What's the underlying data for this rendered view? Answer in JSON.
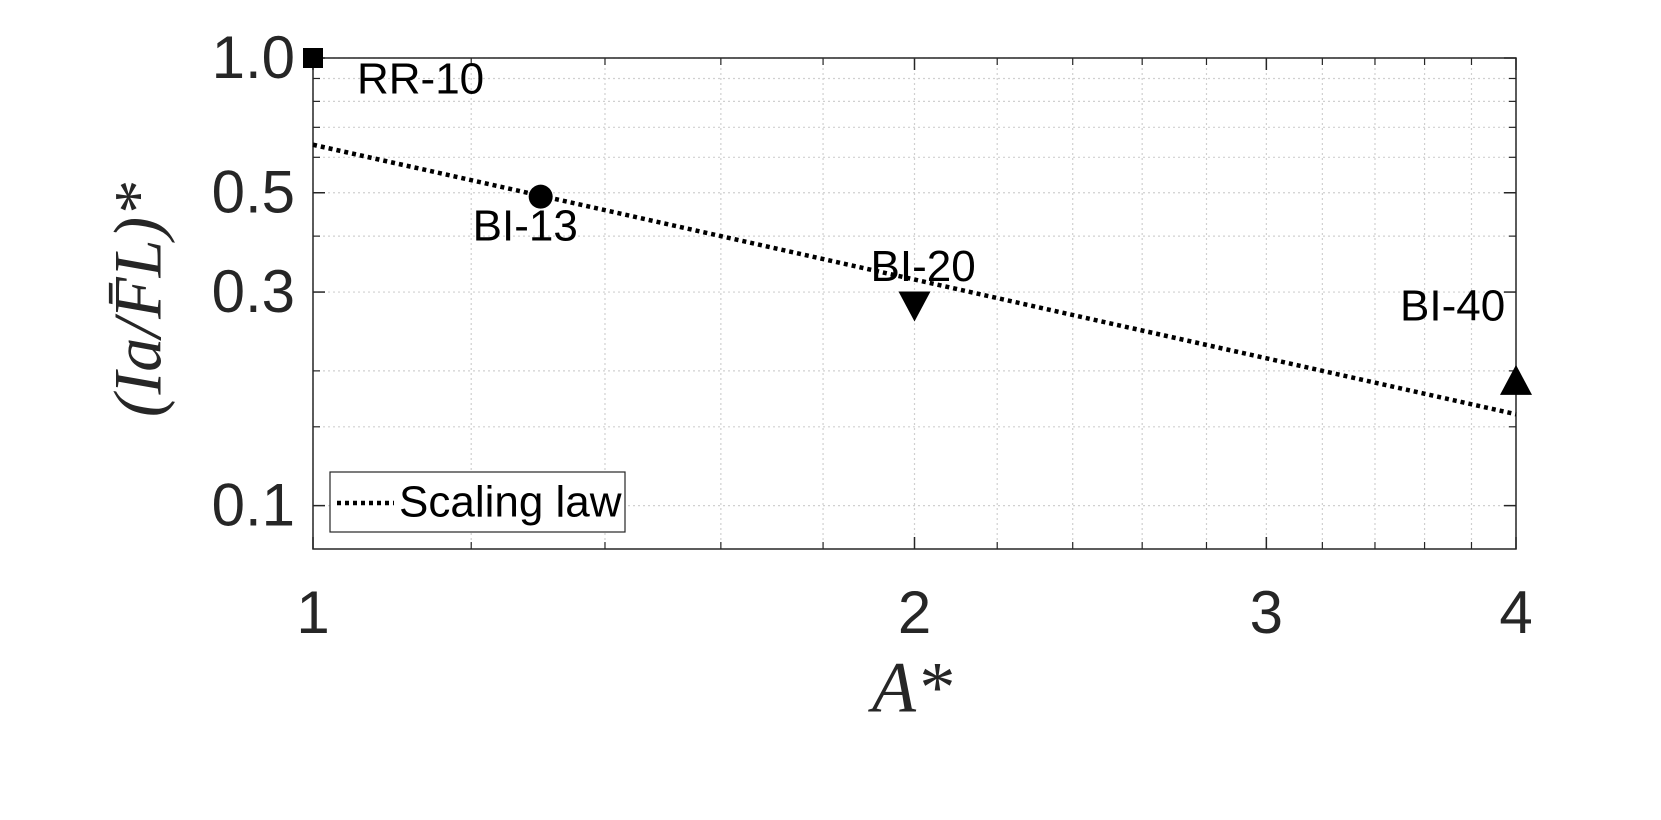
{
  "chart_data": {
    "type": "scatter",
    "xlabel": "A*",
    "ylabel": "(Ia/F̄L)*",
    "xscale": "log",
    "yscale": "log",
    "xlim": [
      1,
      4
    ],
    "ylim": [
      0.08,
      1
    ],
    "xticks": [
      1,
      2,
      3,
      4
    ],
    "yticks": [
      0.1,
      0.3,
      0.5,
      {
        "value": 1,
        "label": "1.0"
      }
    ],
    "xminor": [
      1.2,
      1.4,
      1.6,
      1.8,
      2.2,
      2.4,
      2.6,
      2.8,
      3.2,
      3.4,
      3.6,
      3.8
    ],
    "yminor": [
      0.15,
      0.2,
      0.4,
      0.6,
      0.7,
      0.8,
      0.9
    ],
    "grid": true,
    "points": [
      {
        "label": "RR-10",
        "x": 1,
        "y": 1,
        "marker": "square",
        "color": "#000000"
      },
      {
        "label": "BI-13",
        "x": 1.3,
        "y": 0.49,
        "marker": "circle",
        "color": "#000000"
      },
      {
        "label": "BI-20",
        "x": 2,
        "y": 0.28,
        "marker": "triangle-down",
        "color": "#000000"
      },
      {
        "label": "BI-40",
        "x": 4,
        "y": 0.19,
        "marker": "triangle-up",
        "color": "#000000"
      }
    ],
    "series": [
      {
        "name": "Scaling law",
        "x": [
          1,
          4
        ],
        "values": [
          0.64,
          0.16
        ],
        "color": "#000000",
        "style": "dotted"
      }
    ],
    "legend": "lower-left"
  }
}
